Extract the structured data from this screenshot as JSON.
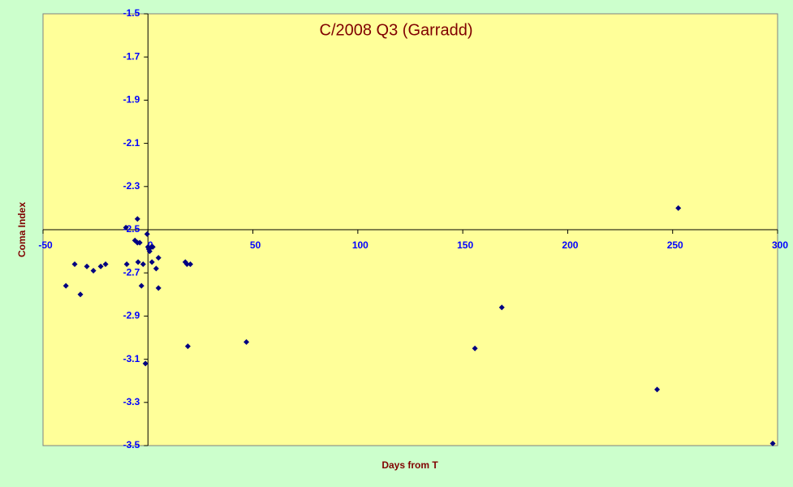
{
  "chart_data": {
    "type": "scatter",
    "title": "C/2008 Q3 (Garradd)",
    "x_label": "Days from T",
    "y_label": "Coma Index",
    "color": "#000080",
    "plot_color": "#ffff99",
    "background": "#ccffcc",
    "xlim": [
      -50,
      300
    ],
    "xticks": [
      -50,
      0,
      50,
      100,
      150,
      200,
      250,
      300
    ],
    "ylim": [
      -3.5,
      -1.5
    ],
    "yticks": [
      -1.5,
      -1.7,
      -1.9,
      -2.1,
      -2.3,
      -2.5,
      -2.7,
      -2.9,
      -3.1,
      -3.3,
      -3.5
    ],
    "x_axis_crosses_y": -2.5,
    "y_axis_crosses_x": 0,
    "x": [
      -39.1,
      -34.9,
      -32.2,
      -29.1,
      -26.0,
      -22.5,
      -20.2,
      -10.5,
      -10.1,
      -6.2,
      -5.0,
      -5.0,
      -4.7,
      -3.9,
      -3.1,
      -2.3,
      -1.2,
      -0.4,
      0,
      0.4,
      0.8,
      1.6,
      1.9,
      2.3,
      3.9,
      5.0,
      5.0,
      17.8,
      18.6,
      19.0,
      20.2,
      46.9,
      155.8,
      168.6,
      242.6,
      252.7,
      297.7
    ],
    "values": [
      -2.76,
      -2.66,
      -2.8,
      -2.67,
      -2.69,
      -2.67,
      -2.66,
      -2.49,
      -2.66,
      -2.55,
      -2.45,
      -2.56,
      -2.65,
      -2.56,
      -2.76,
      -2.66,
      -3.12,
      -2.52,
      -2.58,
      -2.59,
      -2.6,
      -2.58,
      -2.65,
      -2.58,
      -2.68,
      -2.63,
      -2.77,
      -2.65,
      -2.66,
      -3.04,
      -2.66,
      -3.02,
      -3.05,
      -2.86,
      -3.24,
      -2.4,
      -3.49
    ]
  }
}
